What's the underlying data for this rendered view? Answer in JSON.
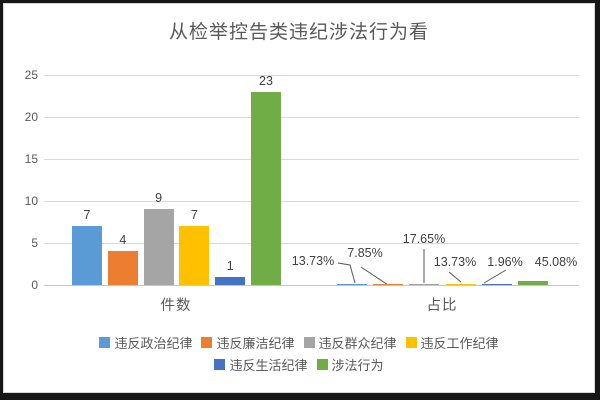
{
  "chart_data": {
    "type": "bar",
    "title": "从检举控告类违纪涉法行为看",
    "categories": [
      "件数",
      "占比"
    ],
    "yticks": [
      0,
      5,
      10,
      15,
      20,
      25
    ],
    "ylim": [
      0,
      25
    ],
    "grid": true,
    "legend_position": "bottom",
    "series": [
      {
        "name": "违反政治纪律",
        "color": "#5B9BD5",
        "values": [
          7,
          0.1373
        ],
        "labels": [
          "7",
          "13.73%"
        ]
      },
      {
        "name": "违反廉洁纪律",
        "color": "#ED7D31",
        "values": [
          4,
          0.0785
        ],
        "labels": [
          "4",
          "7.85%"
        ]
      },
      {
        "name": "违反群众纪律",
        "color": "#A5A5A5",
        "values": [
          9,
          0.1765
        ],
        "labels": [
          "9",
          "17.65%"
        ]
      },
      {
        "name": "违反工作纪律",
        "color": "#FFC000",
        "values": [
          7,
          0.1373
        ],
        "labels": [
          "7",
          "13.73%"
        ]
      },
      {
        "name": "违反生活纪律",
        "color": "#4472C4",
        "values": [
          1,
          0.0196
        ],
        "labels": [
          "1",
          "1.96%"
        ]
      },
      {
        "name": "涉法行为",
        "color": "#70AD47",
        "values": [
          23,
          0.4508
        ],
        "labels": [
          "23",
          "45.08%"
        ]
      }
    ]
  }
}
